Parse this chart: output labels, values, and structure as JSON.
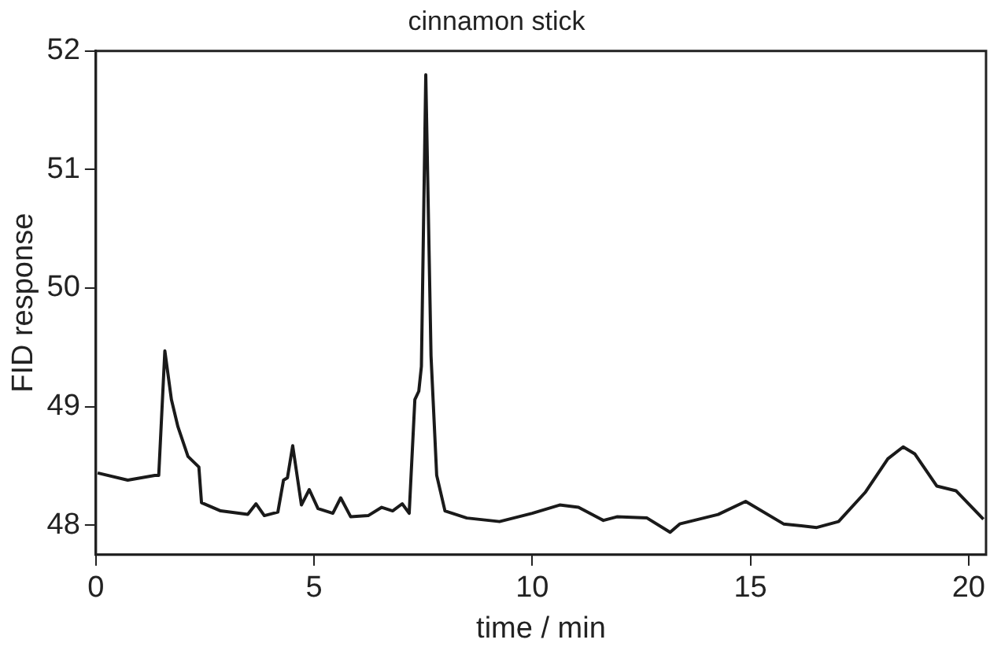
{
  "chart_data": {
    "type": "line",
    "title": "cinnamon stick",
    "xlabel": "time / min",
    "ylabel": "FID response",
    "xlim": [
      0,
      20.4
    ],
    "ylim": [
      47.75,
      52
    ],
    "xticks": [
      0,
      5,
      10,
      15,
      20
    ],
    "yticks": [
      48,
      49,
      50,
      51,
      52
    ],
    "grid": false,
    "legend": false,
    "marker": "none",
    "line_style": "solid",
    "series": [
      {
        "color": "#1a1a1a",
        "x": [
          0.04,
          0.73,
          1.35,
          1.44,
          1.58,
          1.73,
          1.88,
          2.11,
          2.36,
          2.42,
          2.86,
          3.48,
          3.67,
          3.86,
          4.17,
          4.3,
          4.39,
          4.51,
          4.71,
          4.89,
          5.09,
          5.43,
          5.61,
          5.84,
          6.24,
          6.55,
          6.8,
          7.02,
          7.18,
          7.31,
          7.4,
          7.46,
          7.56,
          7.68,
          7.81,
          8.0,
          8.5,
          9.25,
          10.0,
          10.63,
          11.06,
          11.63,
          11.94,
          12.63,
          13.16,
          13.38,
          14.26,
          14.89,
          15.76,
          16.52,
          17.02,
          17.64,
          18.15,
          18.5,
          18.77,
          19.27,
          19.71,
          20.34
        ],
        "values": [
          48.44,
          48.38,
          48.42,
          48.42,
          49.47,
          49.06,
          48.83,
          48.58,
          48.49,
          48.19,
          48.12,
          48.09,
          48.18,
          48.08,
          48.11,
          48.38,
          48.4,
          48.67,
          48.17,
          48.3,
          48.14,
          48.1,
          48.23,
          48.07,
          48.08,
          48.15,
          48.12,
          48.18,
          48.1,
          49.06,
          49.13,
          49.34,
          51.8,
          49.43,
          48.42,
          48.12,
          48.06,
          48.03,
          48.1,
          48.17,
          48.15,
          48.04,
          48.07,
          48.06,
          47.94,
          48.01,
          48.09,
          48.2,
          48.01,
          47.98,
          48.03,
          48.28,
          48.56,
          48.66,
          48.6,
          48.33,
          48.29,
          48.05
        ]
      }
    ]
  }
}
